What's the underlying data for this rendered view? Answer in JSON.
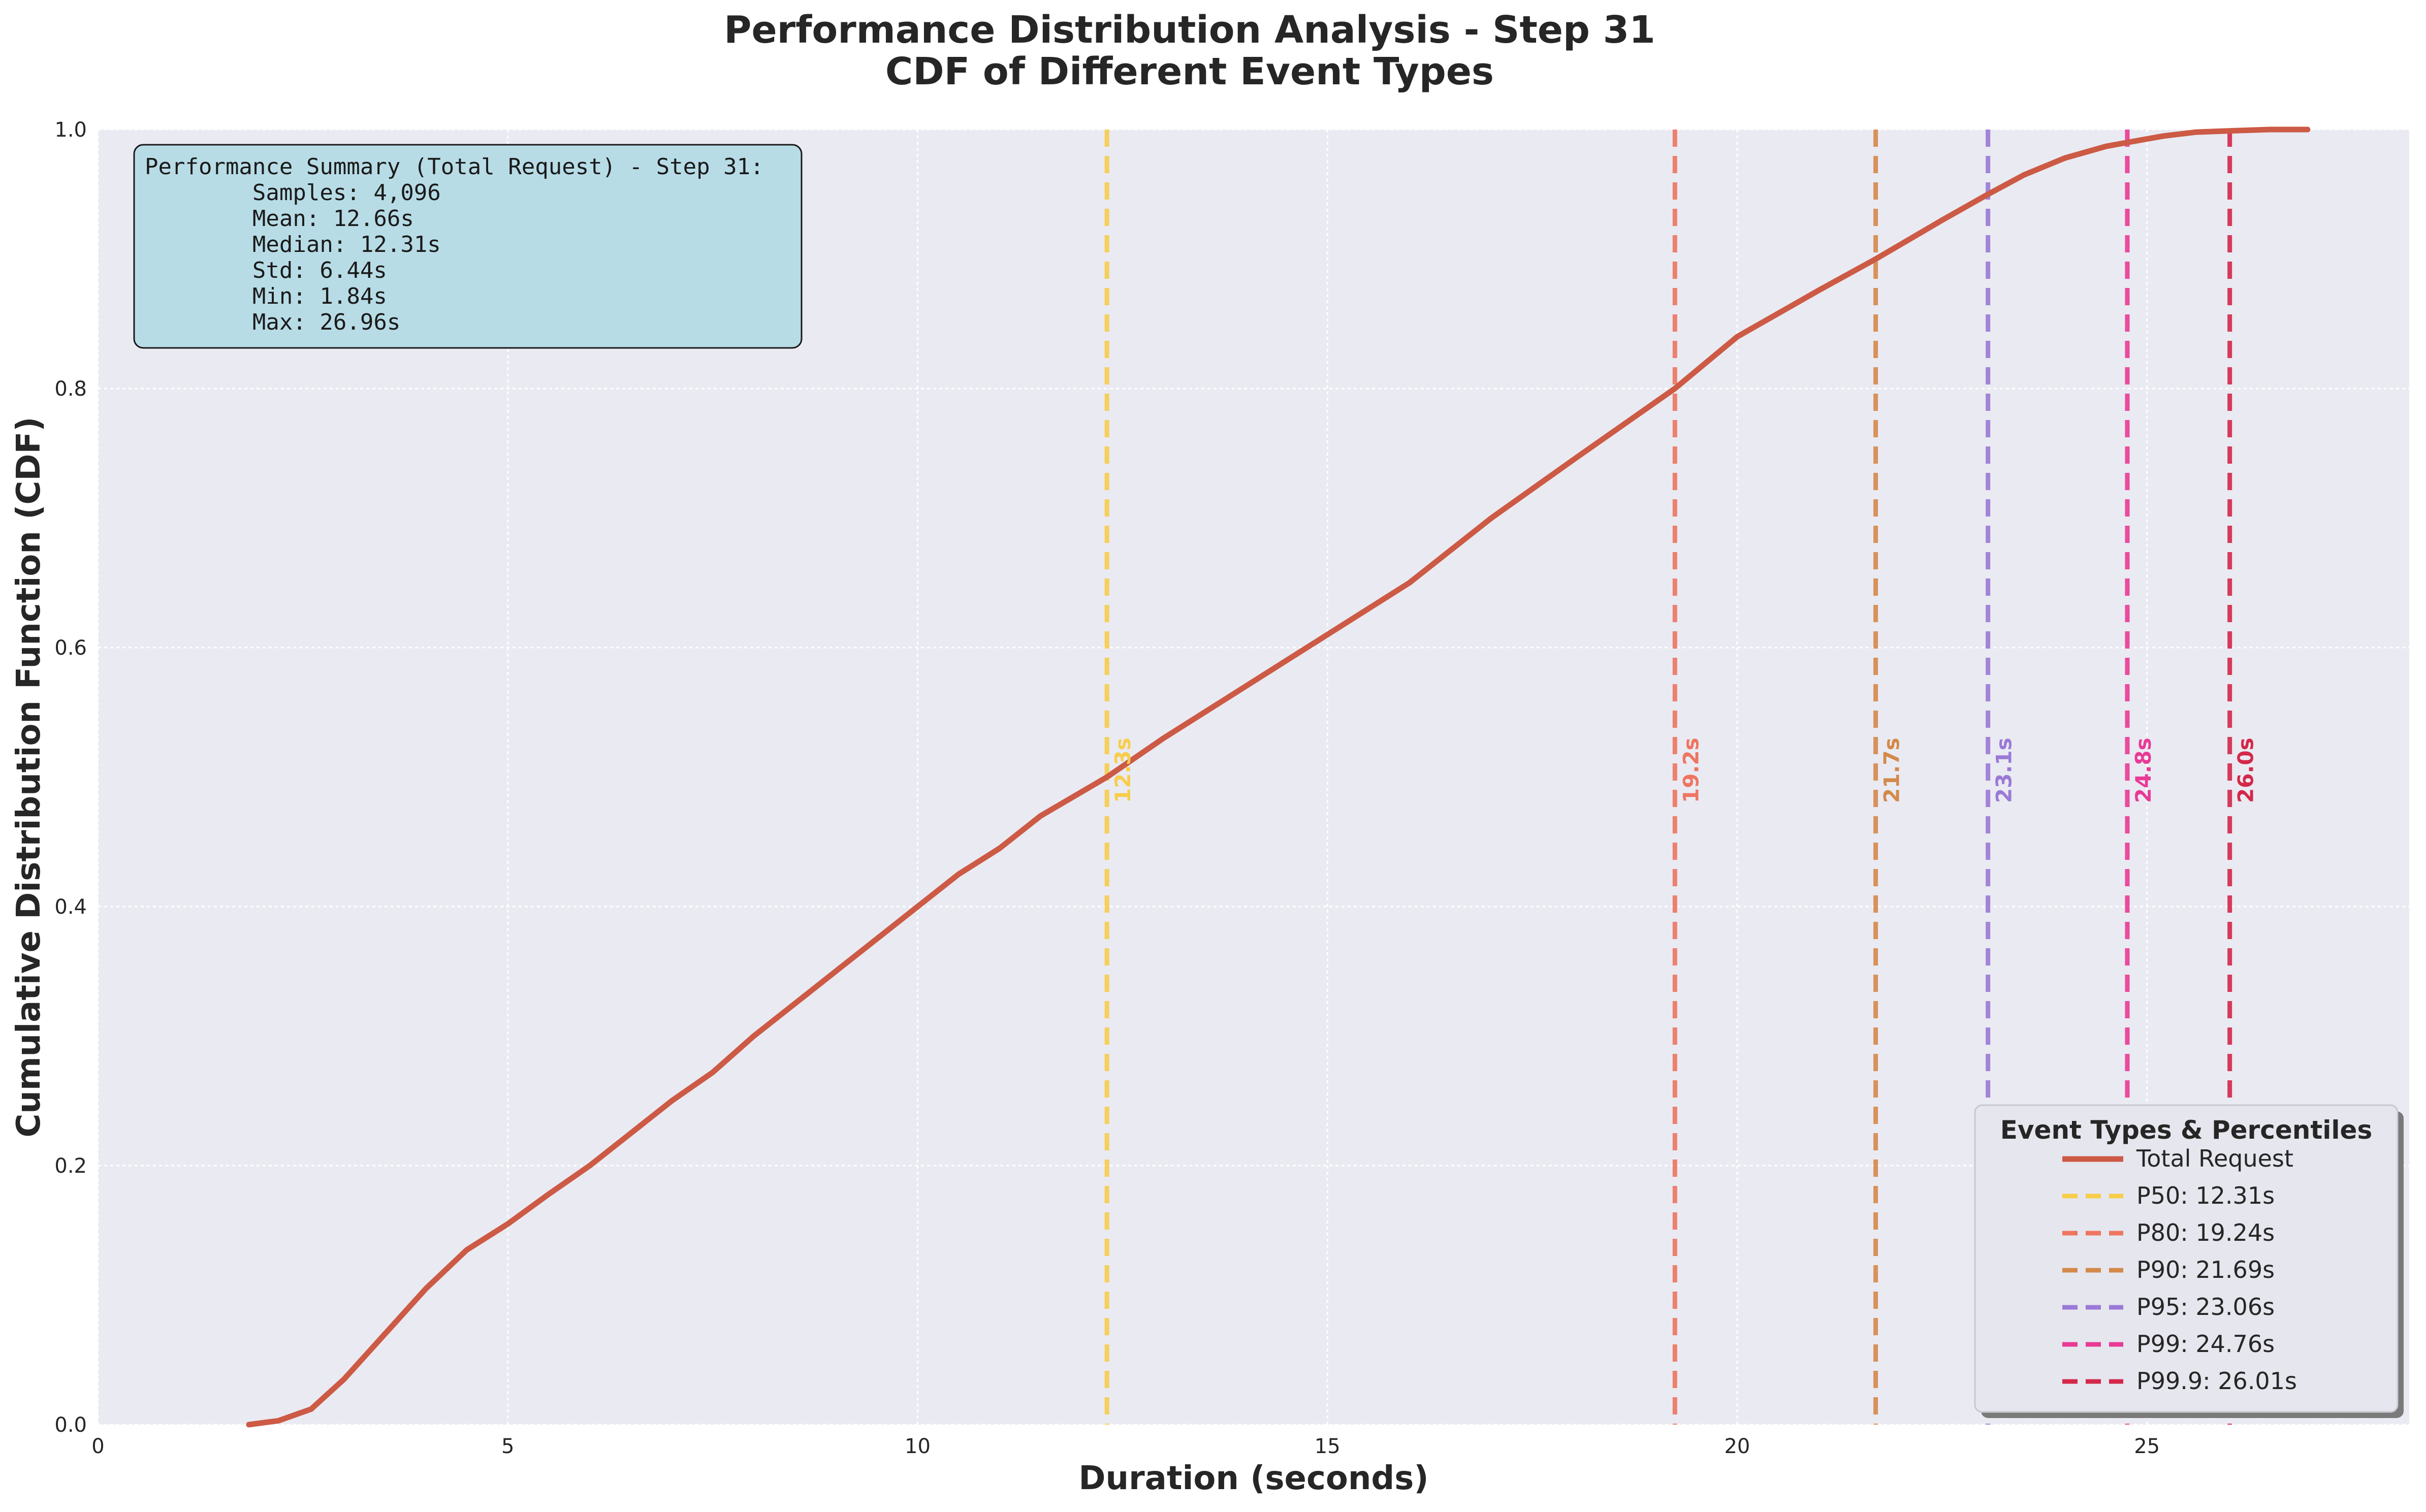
{
  "chart_data": {
    "type": "line",
    "title": "Performance Distribution Analysis - Step 31",
    "subtitle": "CDF of Different Event Types",
    "xlabel": "Duration (seconds)",
    "ylabel": "Cumulative Distribution Function (CDF)",
    "xlim": [
      0,
      28.2
    ],
    "ylim": [
      0,
      1.0
    ],
    "x_ticks": [
      0,
      5,
      10,
      15,
      20,
      25
    ],
    "y_ticks": [
      0.0,
      0.2,
      0.4,
      0.6,
      0.8,
      1.0
    ],
    "x_tick_labels": [
      "0",
      "5",
      "10",
      "15",
      "20",
      "25"
    ],
    "y_tick_labels": [
      "0.0",
      "0.2",
      "0.4",
      "0.6",
      "0.8",
      "1.0"
    ],
    "grid": true,
    "legend_position": "bottom-right",
    "series": [
      {
        "name": "Total Request",
        "color": "#cc5a45",
        "x": [
          1.84,
          2.2,
          2.6,
          3.0,
          3.5,
          4.0,
          4.5,
          5.0,
          5.5,
          6.0,
          6.5,
          7.0,
          7.5,
          8.0,
          8.5,
          9.0,
          9.5,
          10.0,
          10.5,
          11.0,
          11.5,
          12.31,
          13.0,
          14.0,
          15.0,
          16.0,
          17.0,
          18.0,
          19.24,
          20.0,
          21.0,
          21.69,
          22.5,
          23.06,
          23.5,
          24.0,
          24.5,
          24.76,
          25.2,
          25.6,
          26.01,
          26.5,
          26.96
        ],
        "y": [
          0.0,
          0.003,
          0.012,
          0.035,
          0.07,
          0.105,
          0.135,
          0.155,
          0.178,
          0.2,
          0.225,
          0.25,
          0.272,
          0.3,
          0.325,
          0.35,
          0.375,
          0.4,
          0.425,
          0.445,
          0.47,
          0.5,
          0.53,
          0.57,
          0.61,
          0.65,
          0.7,
          0.745,
          0.8,
          0.84,
          0.876,
          0.9,
          0.93,
          0.95,
          0.965,
          0.978,
          0.987,
          0.99,
          0.995,
          0.998,
          0.999,
          1.0,
          1.0
        ]
      }
    ],
    "percentiles": [
      {
        "name": "P50",
        "value": 12.31,
        "legend": "P50: 12.31s",
        "label": "12.3s",
        "color": "#f8cd4a"
      },
      {
        "name": "P80",
        "value": 19.24,
        "legend": "P80: 19.24s",
        "label": "19.2s",
        "color": "#ee7560"
      },
      {
        "name": "P90",
        "value": 21.69,
        "legend": "P90: 21.69s",
        "label": "21.7s",
        "color": "#d4894a"
      },
      {
        "name": "P95",
        "value": 23.06,
        "legend": "P95: 23.06s",
        "label": "23.1s",
        "color": "#9a7ad6"
      },
      {
        "name": "P99",
        "value": 24.76,
        "legend": "P99: 24.76s",
        "label": "24.8s",
        "color": "#e93a95"
      },
      {
        "name": "P99.9",
        "value": 26.01,
        "legend": "P99.9: 26.01s",
        "label": "26.0s",
        "color": "#d4284a"
      }
    ],
    "percentile_label_y": 0.48,
    "stats_box": {
      "lines": [
        "Performance Summary (Total Request) - Step 31:",
        "        Samples: 4,096",
        "        Mean: 12.66s",
        "        Median: 12.31s",
        "        Std: 6.44s",
        "        Min: 1.84s",
        "        Max: 26.96s"
      ],
      "background": "#b8dce6"
    },
    "legend": {
      "title": "Event Types & Percentiles",
      "entries": [
        "Total Request",
        "P50: 12.31s",
        "P80: 19.24s",
        "P90: 21.69s",
        "P95: 23.06s",
        "P99: 24.76s",
        "P99.9: 26.01s"
      ]
    },
    "plot_background": "#eaeaf2"
  }
}
